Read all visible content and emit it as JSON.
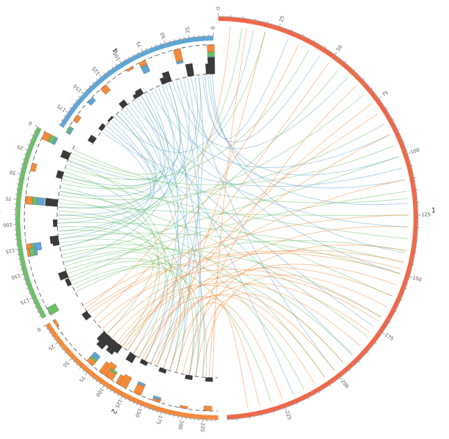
{
  "colors": {
    "1": "#f0684a",
    "2": "#f58a3a",
    "3": "#6cc06a",
    "4": "#5fa6d6",
    "histogram": "#3a3a3a"
  },
  "chromosomes": [
    {
      "id": "1",
      "label": "1",
      "length": 249,
      "ticks": [
        "0",
        "25",
        "50",
        "75",
        "100",
        "125",
        "150",
        "175",
        "200",
        "225"
      ]
    },
    {
      "id": "2",
      "label": "2",
      "length": 243,
      "ticks": [
        "0",
        "25",
        "50",
        "75",
        "100",
        "125",
        "150",
        "175",
        "200",
        "225"
      ]
    },
    {
      "id": "3",
      "label": "3",
      "length": 198,
      "ticks": [
        "0",
        "25",
        "50",
        "75",
        "100",
        "125",
        "150",
        "175"
      ]
    },
    {
      "id": "4",
      "label": "4",
      "length": 191,
      "ticks": [
        "0",
        "25",
        "50",
        "75",
        "100",
        "125",
        "150",
        "175"
      ]
    }
  ],
  "links": [
    [
      4,
      2,
      1,
      141
    ],
    [
      4,
      5,
      1,
      120
    ],
    [
      4,
      8,
      1,
      100
    ],
    [
      4,
      12,
      1,
      30
    ],
    [
      4,
      15,
      1,
      45
    ],
    [
      4,
      20,
      2,
      150
    ],
    [
      4,
      25,
      3,
      80
    ],
    [
      4,
      30,
      1,
      200
    ],
    [
      4,
      35,
      2,
      170
    ],
    [
      4,
      40,
      3,
      120
    ],
    [
      4,
      45,
      1,
      110
    ],
    [
      4,
      50,
      2,
      200
    ],
    [
      4,
      55,
      1,
      60
    ],
    [
      4,
      60,
      3,
      40
    ],
    [
      4,
      65,
      2,
      130
    ],
    [
      4,
      70,
      1,
      150
    ],
    [
      4,
      75,
      3,
      150
    ],
    [
      4,
      80,
      2,
      210
    ],
    [
      4,
      85,
      1,
      90
    ],
    [
      4,
      90,
      3,
      100
    ],
    [
      4,
      95,
      2,
      110
    ],
    [
      4,
      100,
      1,
      220
    ],
    [
      4,
      105,
      3,
      60
    ],
    [
      4,
      110,
      2,
      180
    ],
    [
      4,
      115,
      1,
      130
    ],
    [
      4,
      120,
      3,
      20
    ],
    [
      4,
      125,
      2,
      140
    ],
    [
      4,
      130,
      1,
      175
    ],
    [
      4,
      135,
      3,
      90
    ],
    [
      4,
      140,
      2,
      220
    ],
    [
      4,
      145,
      1,
      15
    ],
    [
      4,
      150,
      3,
      130
    ],
    [
      4,
      155,
      2,
      160
    ],
    [
      4,
      160,
      1,
      190
    ],
    [
      4,
      165,
      3,
      110
    ],
    [
      4,
      170,
      1,
      105
    ],
    [
      3,
      5,
      1,
      118
    ],
    [
      3,
      10,
      4,
      60
    ],
    [
      3,
      15,
      1,
      95
    ],
    [
      3,
      20,
      2,
      120
    ],
    [
      3,
      25,
      1,
      160
    ],
    [
      3,
      30,
      1,
      40
    ],
    [
      3,
      35,
      2,
      90
    ],
    [
      3,
      40,
      1,
      135
    ],
    [
      3,
      45,
      4,
      100
    ],
    [
      3,
      50,
      1,
      20
    ],
    [
      3,
      55,
      2,
      150
    ],
    [
      3,
      60,
      1,
      180
    ],
    [
      3,
      65,
      1,
      85
    ],
    [
      3,
      70,
      2,
      200
    ],
    [
      3,
      75,
      1,
      125
    ],
    [
      3,
      80,
      4,
      140
    ],
    [
      3,
      85,
      1,
      205
    ],
    [
      3,
      90,
      2,
      100
    ],
    [
      3,
      95,
      1,
      70
    ],
    [
      3,
      100,
      1,
      145
    ],
    [
      3,
      105,
      2,
      170
    ],
    [
      3,
      110,
      1,
      215
    ],
    [
      3,
      115,
      4,
      20
    ],
    [
      3,
      120,
      1,
      150
    ],
    [
      3,
      125,
      2,
      130
    ],
    [
      3,
      130,
      1,
      10
    ],
    [
      3,
      135,
      1,
      190
    ],
    [
      3,
      140,
      2,
      210
    ],
    [
      3,
      145,
      1,
      100
    ],
    [
      3,
      150,
      1,
      170
    ],
    [
      3,
      155,
      2,
      60
    ],
    [
      3,
      160,
      1,
      230
    ],
    [
      3,
      165,
      1,
      115
    ],
    [
      3,
      170,
      2,
      180
    ],
    [
      3,
      175,
      1,
      55
    ],
    [
      3,
      180,
      1,
      195
    ],
    [
      3,
      185,
      2,
      225
    ],
    [
      3,
      190,
      1,
      140
    ],
    [
      2,
      5,
      1,
      125
    ],
    [
      2,
      10,
      1,
      5
    ],
    [
      2,
      20,
      1,
      150
    ],
    [
      2,
      30,
      1,
      35
    ],
    [
      2,
      40,
      1,
      170
    ],
    [
      2,
      50,
      1,
      80
    ],
    [
      2,
      60,
      1,
      145
    ],
    [
      2,
      70,
      1,
      200
    ],
    [
      2,
      80,
      1,
      110
    ],
    [
      2,
      90,
      1,
      185
    ],
    [
      2,
      100,
      1,
      50
    ],
    [
      2,
      110,
      1,
      160
    ],
    [
      2,
      120,
      1,
      225
    ],
    [
      2,
      125,
      1,
      130
    ],
    [
      2,
      130,
      1,
      75
    ],
    [
      2,
      140,
      1,
      210
    ],
    [
      2,
      150,
      1,
      155
    ],
    [
      2,
      160,
      1,
      20
    ],
    [
      2,
      170,
      1,
      178
    ],
    [
      2,
      180,
      1,
      235
    ],
    [
      2,
      190,
      1,
      140
    ],
    [
      2,
      200,
      1,
      65
    ],
    [
      2,
      210,
      1,
      195
    ],
    [
      2,
      220,
      1,
      165
    ],
    [
      2,
      230,
      1,
      240
    ],
    [
      2,
      235,
      1,
      12
    ],
    [
      2,
      15,
      1,
      148
    ],
    [
      2,
      85,
      1,
      172
    ],
    [
      2,
      95,
      1,
      90
    ],
    [
      2,
      145,
      1,
      205
    ]
  ],
  "stacked_histogram": {
    "2": [
      [
        5,
        [
          1,
          0,
          0
        ]
      ],
      [
        70,
        [
          2,
          1,
          2
        ]
      ],
      [
        90,
        [
          5,
          0,
          0
        ]
      ],
      [
        95,
        [
          6,
          0,
          0
        ]
      ],
      [
        100,
        [
          3,
          1,
          0
        ]
      ],
      [
        115,
        [
          4,
          0,
          0
        ]
      ],
      [
        120,
        [
          5,
          0,
          0
        ]
      ],
      [
        140,
        [
          4,
          0,
          1
        ]
      ],
      [
        165,
        [
          1,
          0,
          1
        ]
      ],
      [
        200,
        [
          1,
          0,
          0
        ]
      ],
      [
        230,
        [
          2,
          0,
          0
        ]
      ]
    ],
    "3": [
      [
        5,
        [
          3,
          2,
          1
        ]
      ],
      [
        40,
        [
          2,
          0,
          0
        ]
      ],
      [
        75,
        [
          3,
          2,
          3
        ]
      ],
      [
        125,
        [
          2,
          1,
          3
        ]
      ],
      [
        130,
        [
          1,
          2,
          1
        ]
      ],
      [
        195,
        [
          0,
          4,
          0
        ]
      ]
    ],
    "4": [
      [
        3,
        [
          3,
          2,
          4
        ]
      ],
      [
        40,
        [
          5,
          0,
          1
        ]
      ],
      [
        80,
        [
          2,
          0,
          3
        ]
      ],
      [
        95,
        [
          1,
          0,
          0
        ]
      ],
      [
        130,
        [
          3,
          0,
          0
        ]
      ],
      [
        150,
        [
          0,
          0,
          2
        ]
      ],
      [
        175,
        [
          2,
          0,
          0
        ]
      ],
      [
        190,
        [
          0,
          1,
          1
        ]
      ]
    ]
  },
  "inner_histogram": {
    "2": [
      [
        20,
        3
      ],
      [
        60,
        5
      ],
      [
        65,
        7
      ],
      [
        70,
        4
      ],
      [
        80,
        6
      ],
      [
        85,
        4
      ],
      [
        110,
        4
      ],
      [
        130,
        2
      ],
      [
        160,
        2
      ],
      [
        200,
        2
      ],
      [
        230,
        2
      ]
    ],
    "3": [
      [
        15,
        4
      ],
      [
        40,
        3
      ],
      [
        75,
        6
      ],
      [
        100,
        2
      ],
      [
        120,
        4
      ],
      [
        123,
        3
      ],
      [
        165,
        4
      ],
      [
        175,
        2
      ]
    ],
    "4": [
      [
        3,
        8
      ],
      [
        6,
        5
      ],
      [
        30,
        6
      ],
      [
        60,
        5
      ],
      [
        65,
        3
      ],
      [
        100,
        3
      ],
      [
        105,
        2
      ],
      [
        125,
        3
      ],
      [
        150,
        1
      ],
      [
        165,
        2
      ],
      [
        185,
        3
      ]
    ]
  }
}
